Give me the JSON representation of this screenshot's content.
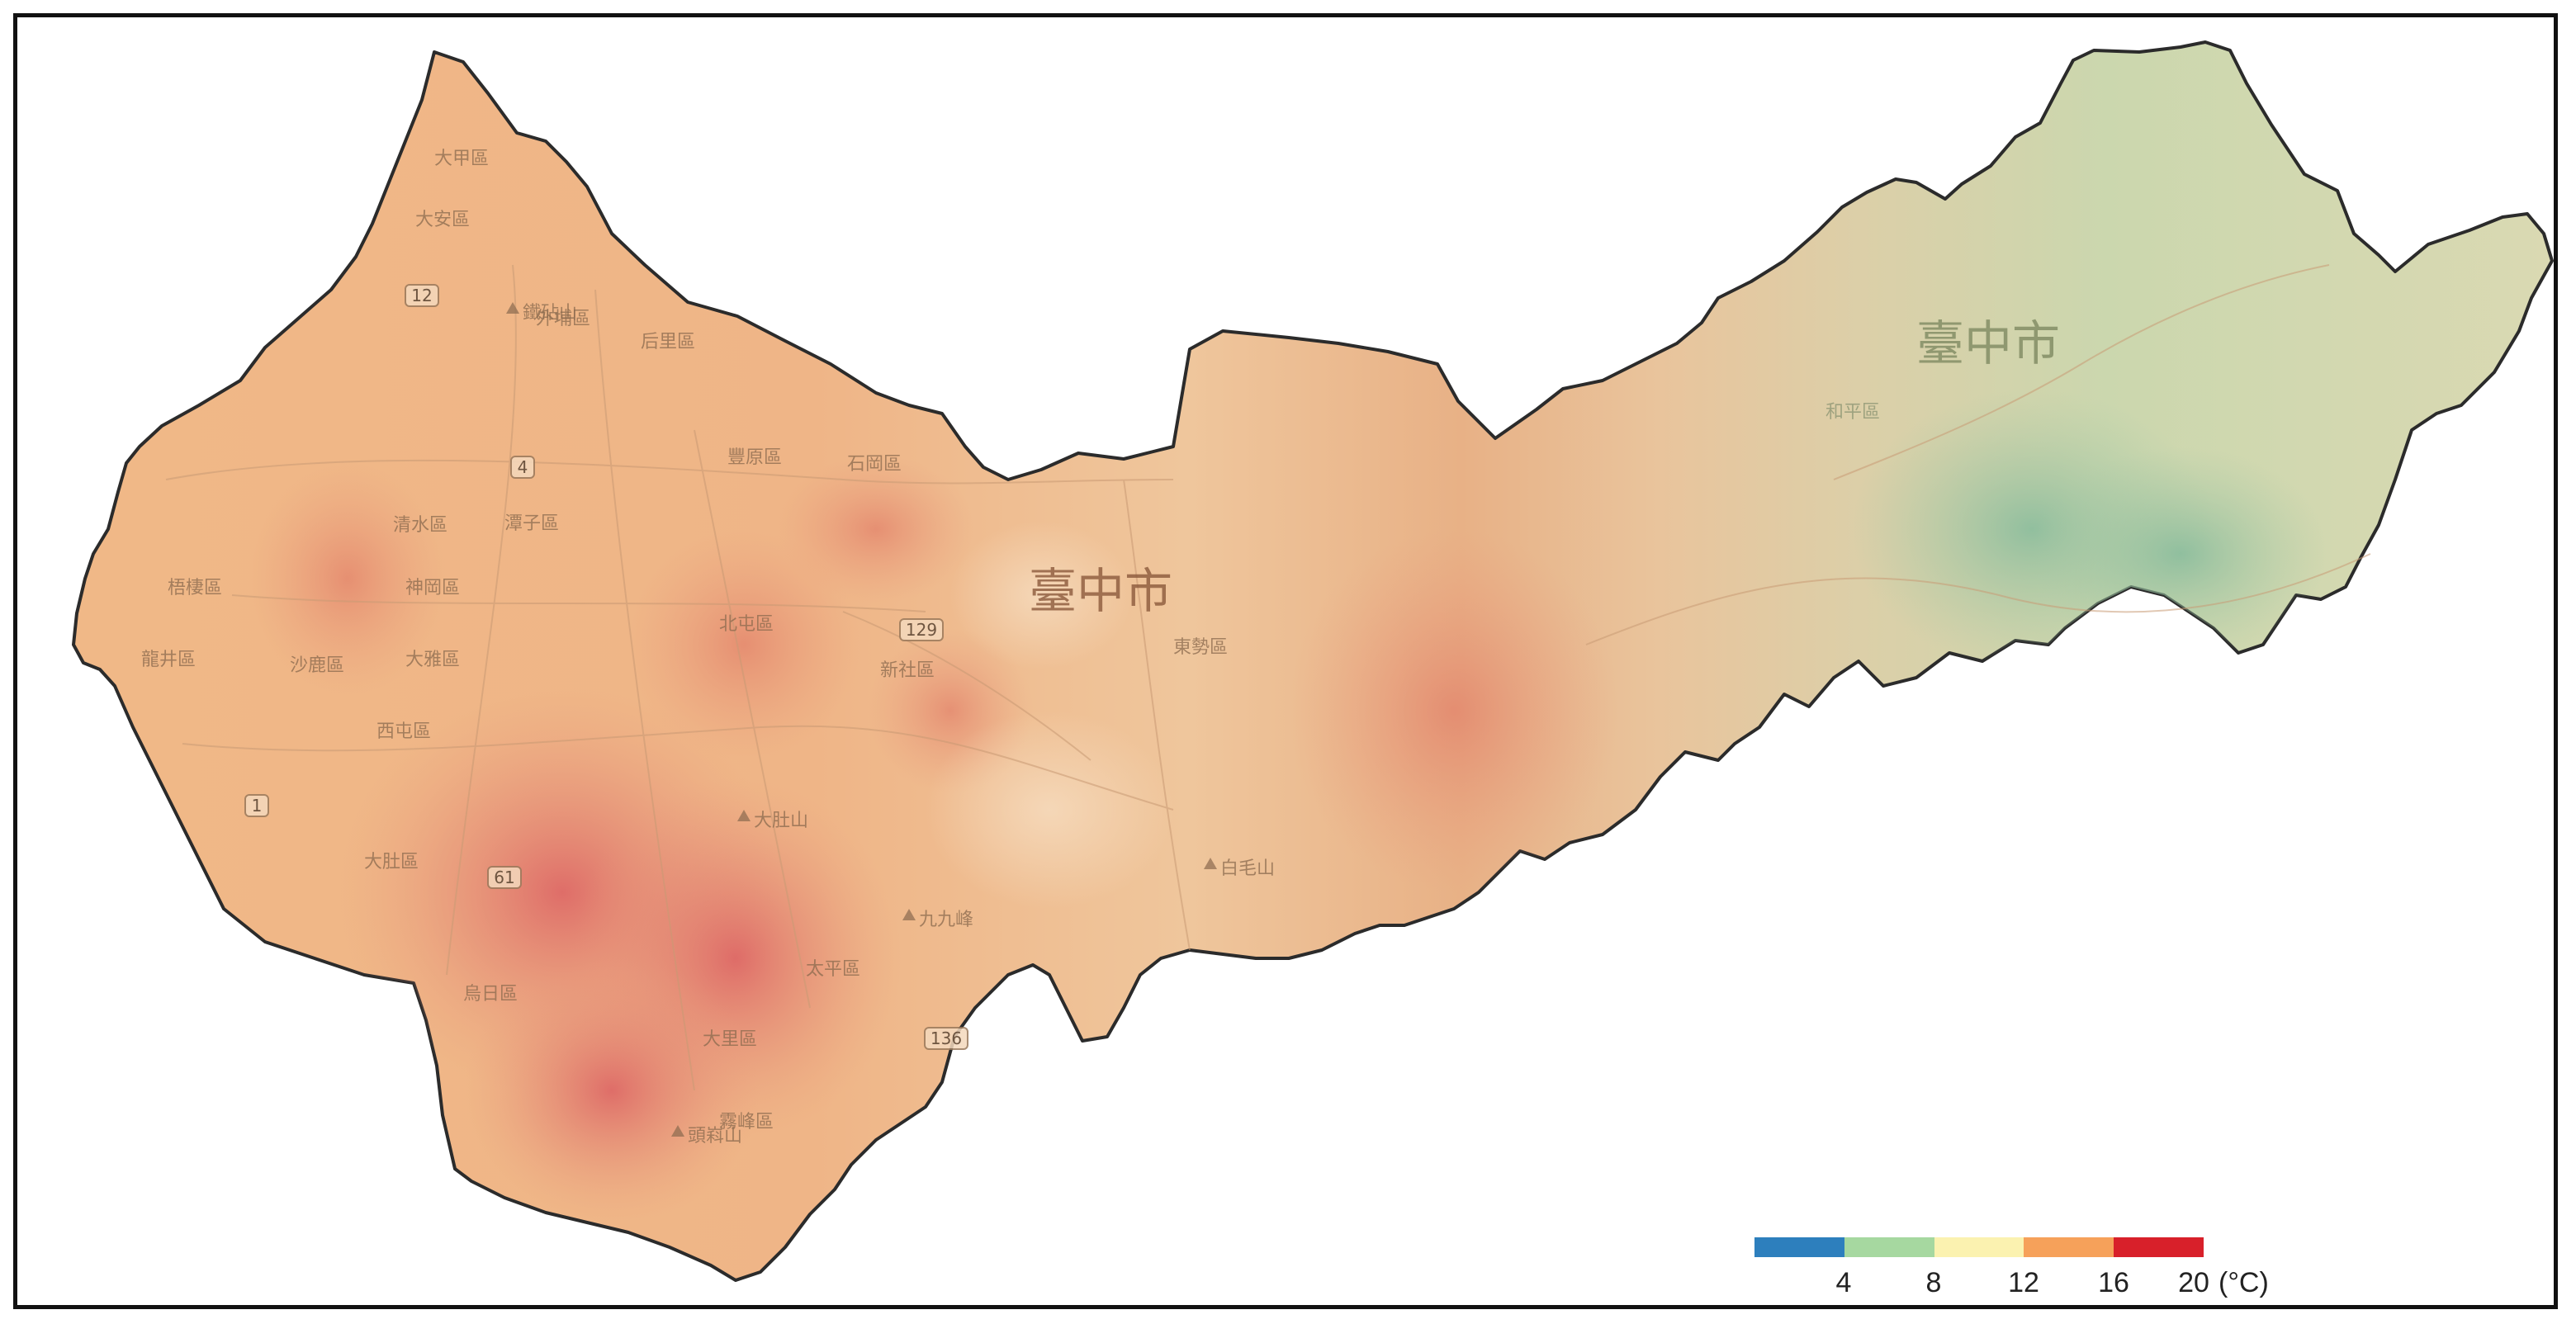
{
  "map": {
    "city_labels": [
      "臺中市",
      "臺中市"
    ],
    "district_labels": [
      "大甲區",
      "大安區",
      "外埔區",
      "后里區",
      "清水區",
      "神岡區",
      "梧棲區",
      "沙鹿區",
      "龍井區",
      "大雅區",
      "潭子區",
      "豐原區",
      "西屯區",
      "北屯區",
      "太平區",
      "大里區",
      "烏日區",
      "霧峰區",
      "大肚區",
      "石岡區",
      "東勢區",
      "新社區",
      "和平區"
    ],
    "mountain_labels": [
      "鐵砧山",
      "大肚山",
      "頭嵙山",
      "九九峰",
      "白毛山"
    ],
    "route_labels": [
      "1",
      "4",
      "12",
      "129",
      "136",
      "61"
    ],
    "colors": {
      "cold": "#7fb99b",
      "cool": "#d9deb6",
      "mild": "#f3cfa4",
      "warm": "#eba37a",
      "hot": "#dd5f63"
    }
  },
  "legend": {
    "segments": [
      {
        "color": "#2d7fbd"
      },
      {
        "color": "#a6d8a0"
      },
      {
        "color": "#fbf2b0"
      },
      {
        "color": "#f6a15a"
      },
      {
        "color": "#d8202a"
      }
    ],
    "ticks": [
      "4",
      "8",
      "12",
      "16",
      "20"
    ],
    "unit": "(°C)"
  }
}
